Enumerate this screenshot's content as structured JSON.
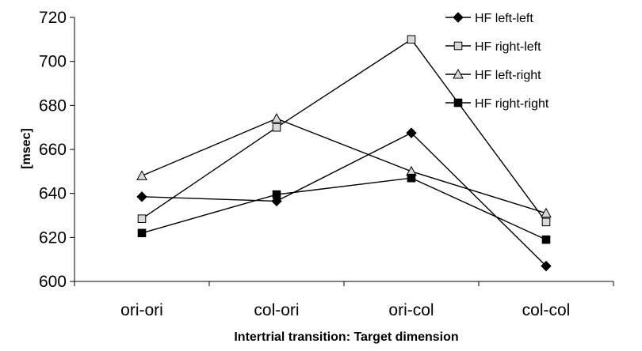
{
  "chart_data": {
    "type": "line",
    "categories": [
      "ori-ori",
      "col-ori",
      "ori-col",
      "col-col"
    ],
    "xlabel": "Intertrial transition: Target dimension",
    "ylabel": "[msec]",
    "ylim": [
      600,
      720
    ],
    "yticks": [
      600,
      620,
      640,
      660,
      680,
      700,
      720
    ],
    "grid": false,
    "legend_position": "top-right",
    "series": [
      {
        "name": "HF left-left",
        "marker": "diamond-filled",
        "values": [
          638.5,
          636.5,
          667.5,
          607
        ]
      },
      {
        "name": "HF right-left",
        "marker": "square-open",
        "values": [
          628.5,
          670,
          710,
          627
        ]
      },
      {
        "name": "HF left-right",
        "marker": "triangle-open",
        "values": [
          648,
          674,
          650,
          631
        ]
      },
      {
        "name": "HF right-right",
        "marker": "square-filled",
        "values": [
          622,
          639.5,
          647,
          619
        ]
      }
    ]
  },
  "colors": {
    "line": "#000000",
    "open_marker_fill": "#d9d9d9"
  }
}
